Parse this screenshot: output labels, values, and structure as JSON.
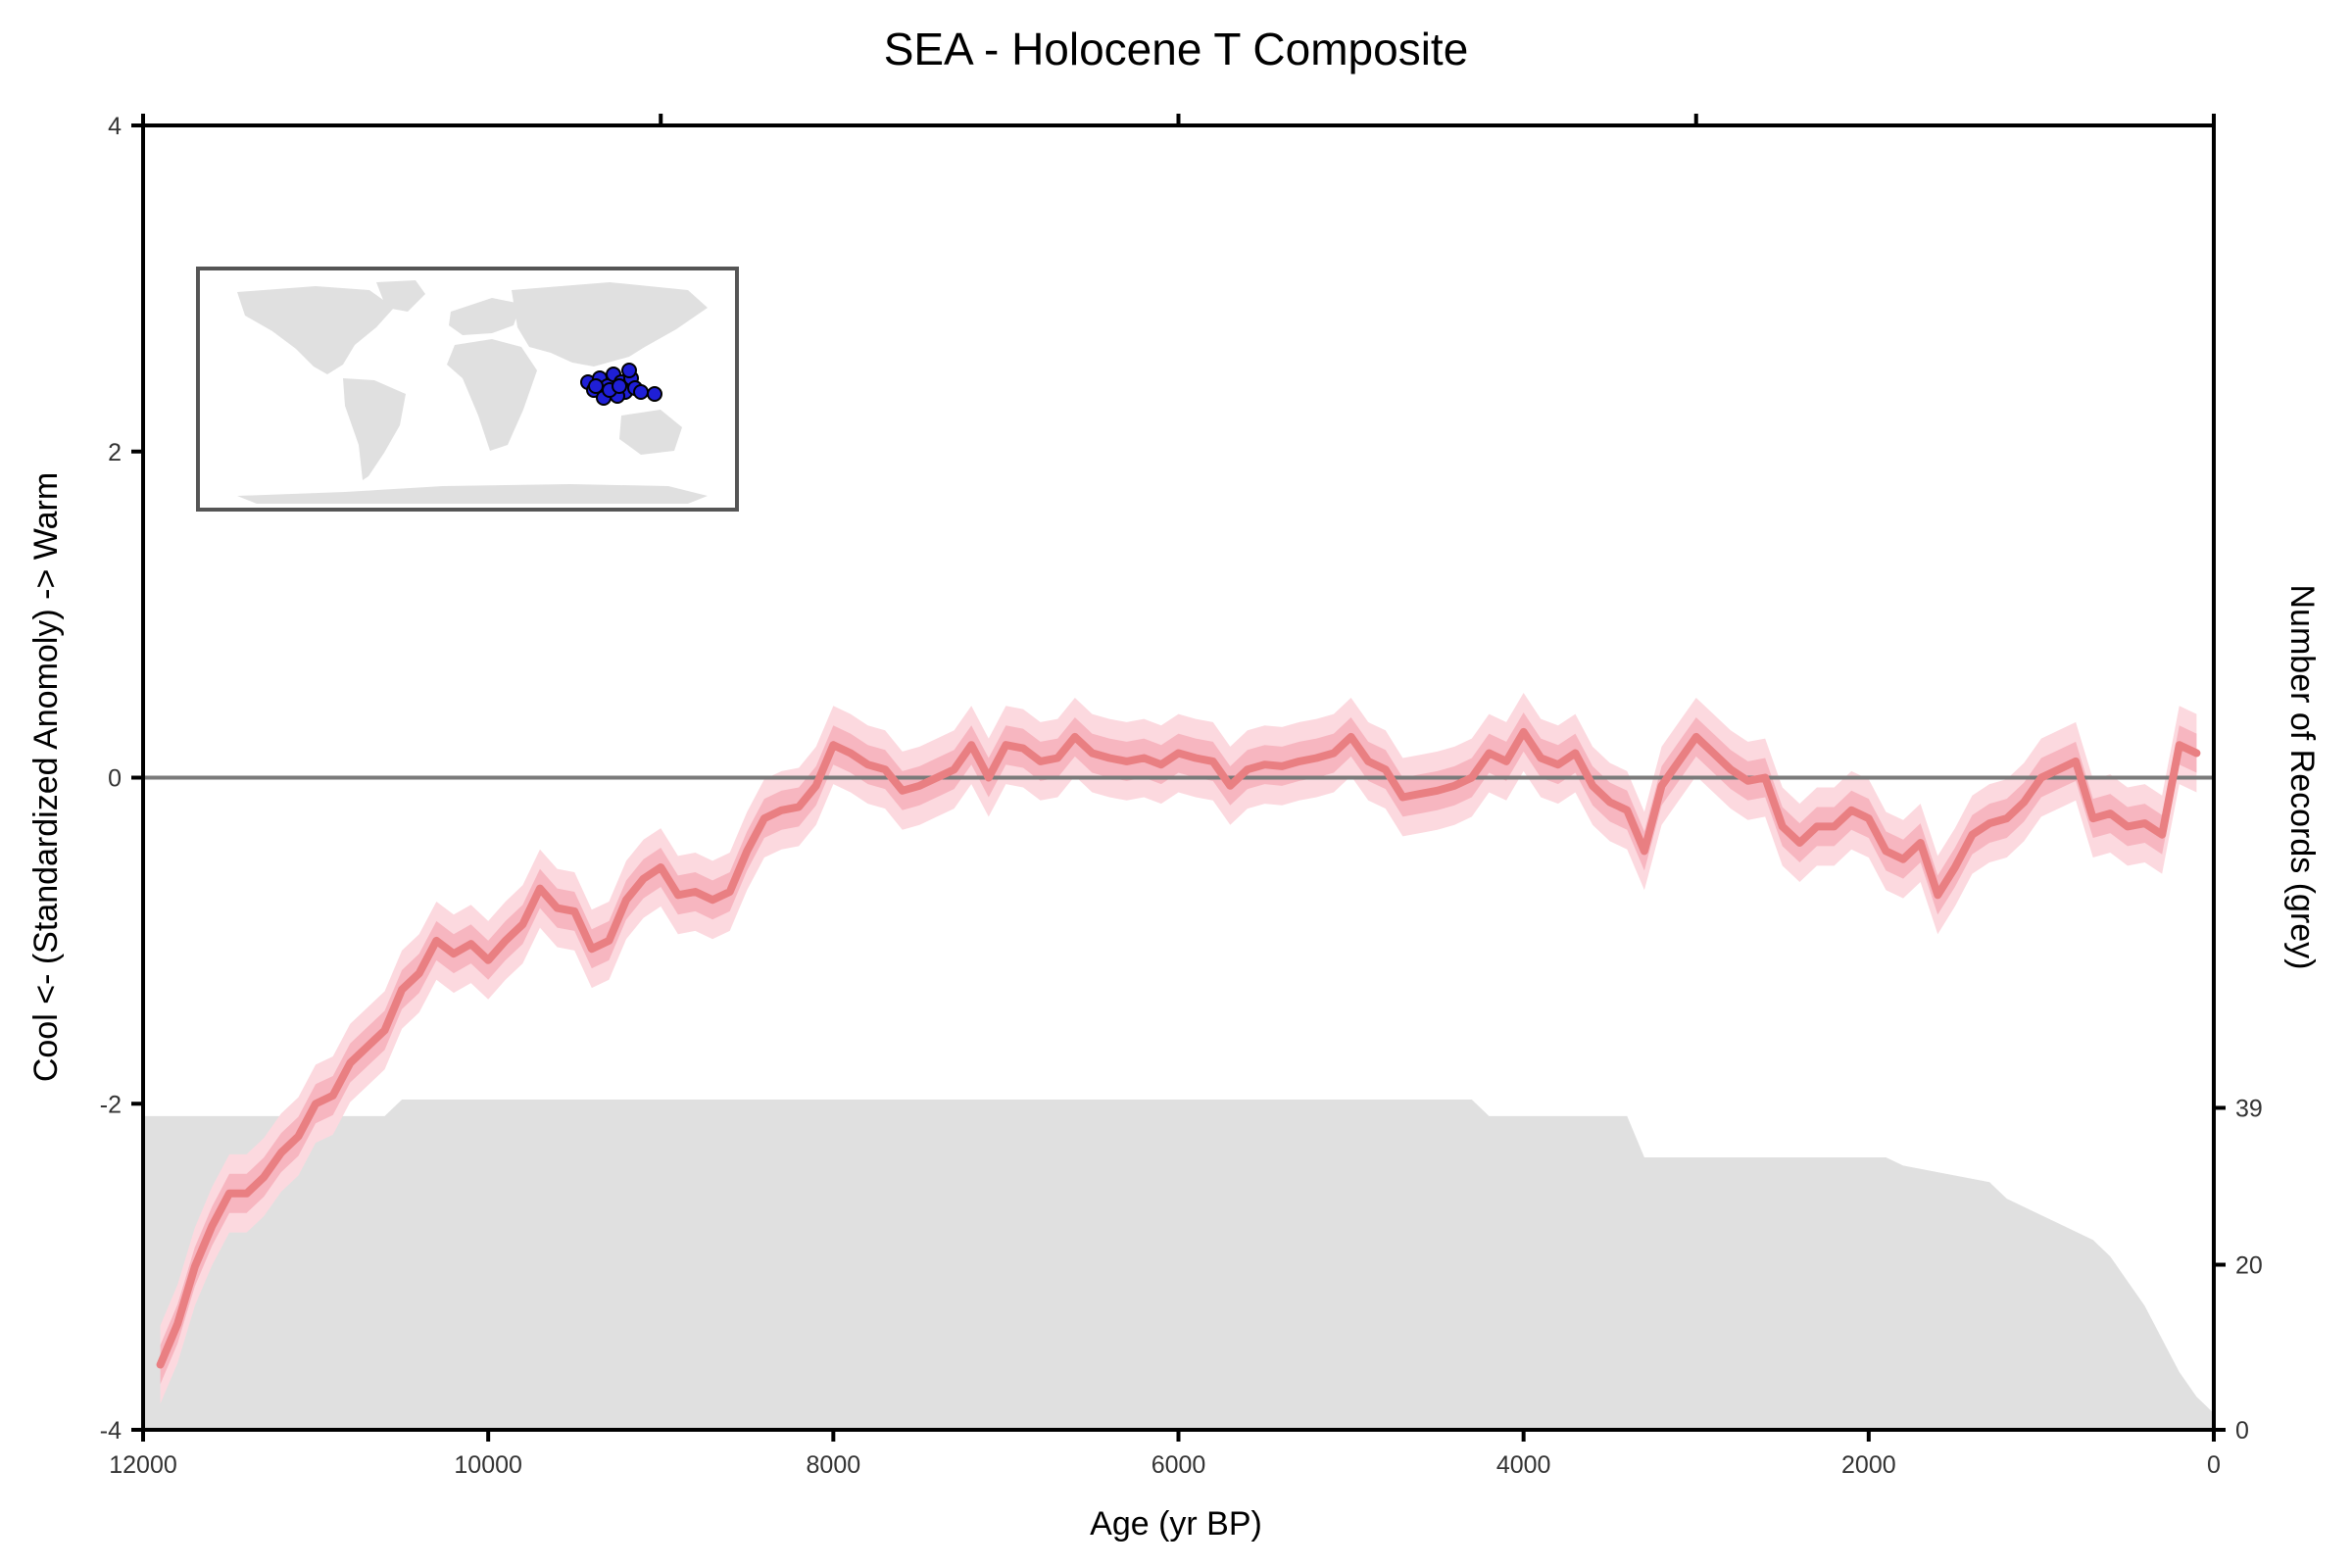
{
  "chart_data": {
    "type": "line",
    "title": "SEA - Holocene T Composite",
    "xlabel": "Age (yr BP)",
    "ylabel": "Cool <- (Standardized Anomoly) -> Warm",
    "y2label": "Number of Records (grey)",
    "xlim": [
      12000,
      0
    ],
    "ylim": [
      -4,
      4
    ],
    "y2lim": [
      0,
      158
    ],
    "x_ticks": [
      12000,
      10000,
      8000,
      6000,
      4000,
      2000,
      0
    ],
    "x_tick_labels": [
      "12000",
      "10000",
      "8000",
      "6000",
      "4000",
      "2000",
      "0"
    ],
    "y_ticks": [
      -4,
      -2,
      0,
      2,
      4
    ],
    "y_tick_labels": [
      "-4",
      "-2",
      "0",
      "2",
      "4"
    ],
    "y2_ticks": [
      0,
      20,
      39
    ],
    "y2_tick_labels": [
      "0",
      "20",
      "39"
    ],
    "reference_line_y": 0,
    "grid": false,
    "colors": {
      "composite_line": "#e97f82",
      "band_inner": "#f7b6c0",
      "band_outer": "#fcd9df",
      "records_fill": "#e0e0e0",
      "zero_line": "#7a7a7a",
      "site_marker": "#1f1fd6",
      "land": "#e0e0e0",
      "inset_border": "#555555"
    },
    "inset": {
      "type": "map",
      "legend_position": "top-left"
    },
    "composite": {
      "x": [
        11900,
        11800,
        11700,
        11600,
        11500,
        11400,
        11300,
        11200,
        11100,
        11000,
        10900,
        10800,
        10700,
        10600,
        10500,
        10400,
        10300,
        10200,
        10100,
        10000,
        9900,
        9800,
        9700,
        9600,
        9500,
        9400,
        9300,
        9200,
        9100,
        9000,
        8900,
        8800,
        8700,
        8600,
        8500,
        8400,
        8300,
        8200,
        8100,
        8000,
        7900,
        7800,
        7700,
        7600,
        7500,
        7400,
        7300,
        7200,
        7100,
        7000,
        6900,
        6800,
        6700,
        6600,
        6500,
        6400,
        6300,
        6200,
        6100,
        6000,
        5900,
        5800,
        5700,
        5600,
        5500,
        5400,
        5300,
        5200,
        5100,
        5000,
        4900,
        4800,
        4700,
        4600,
        4500,
        4400,
        4300,
        4200,
        4100,
        4000,
        3900,
        3800,
        3700,
        3600,
        3500,
        3400,
        3300,
        3200,
        3100,
        3000,
        2900,
        2800,
        2700,
        2600,
        2500,
        2400,
        2300,
        2200,
        2100,
        2000,
        1900,
        1800,
        1700,
        1600,
        1500,
        1400,
        1300,
        1200,
        1100,
        1000,
        900,
        800,
        700,
        600,
        500,
        400,
        300,
        200,
        100
      ],
      "y": [
        -3.6,
        -3.35,
        -3.0,
        -2.75,
        -2.55,
        -2.55,
        -2.45,
        -2.3,
        -2.2,
        -2.0,
        -1.95,
        -1.75,
        -1.65,
        -1.55,
        -1.3,
        -1.2,
        -1.0,
        -1.08,
        -1.02,
        -1.12,
        -1.0,
        -0.9,
        -0.68,
        -0.8,
        -0.82,
        -1.05,
        -1.0,
        -0.75,
        -0.62,
        -0.55,
        -0.72,
        -0.7,
        -0.75,
        -0.7,
        -0.45,
        -0.25,
        -0.2,
        -0.18,
        -0.05,
        0.2,
        0.15,
        0.08,
        0.05,
        -0.08,
        -0.05,
        0.0,
        0.05,
        0.2,
        0.0,
        0.2,
        0.18,
        0.1,
        0.12,
        0.25,
        0.15,
        0.12,
        0.1,
        0.12,
        0.08,
        0.15,
        0.12,
        0.1,
        -0.05,
        0.05,
        0.08,
        0.07,
        0.1,
        0.12,
        0.15,
        0.25,
        0.1,
        0.05,
        -0.12,
        -0.1,
        -0.08,
        -0.05,
        0.0,
        0.15,
        0.1,
        0.28,
        0.12,
        0.08,
        0.15,
        -0.05,
        -0.15,
        -0.2,
        -0.45,
        -0.05,
        0.1,
        0.25,
        0.15,
        0.05,
        -0.02,
        0.0,
        -0.3,
        -0.4,
        -0.3,
        -0.3,
        -0.2,
        -0.25,
        -0.45,
        -0.5,
        -0.4,
        -0.72,
        -0.55,
        -0.35,
        -0.28,
        -0.25,
        -0.15,
        0.0,
        0.05,
        0.1,
        -0.25,
        -0.22,
        -0.3,
        -0.28,
        -0.35,
        0.2,
        0.15
      ],
      "band_inner_halfwidth": 0.12,
      "band_outer_halfwidth": 0.24
    },
    "records": {
      "x": [
        12000,
        10600,
        10500,
        4300,
        4200,
        3400,
        3300,
        1900,
        1800,
        1300,
        1200,
        1000,
        900,
        700,
        600,
        500,
        400,
        300,
        200,
        100,
        0
      ],
      "y": [
        38,
        38,
        40,
        40,
        38,
        38,
        33,
        33,
        32,
        30,
        28,
        26,
        25,
        23,
        21,
        18,
        15,
        11,
        7,
        4,
        2
      ]
    }
  }
}
